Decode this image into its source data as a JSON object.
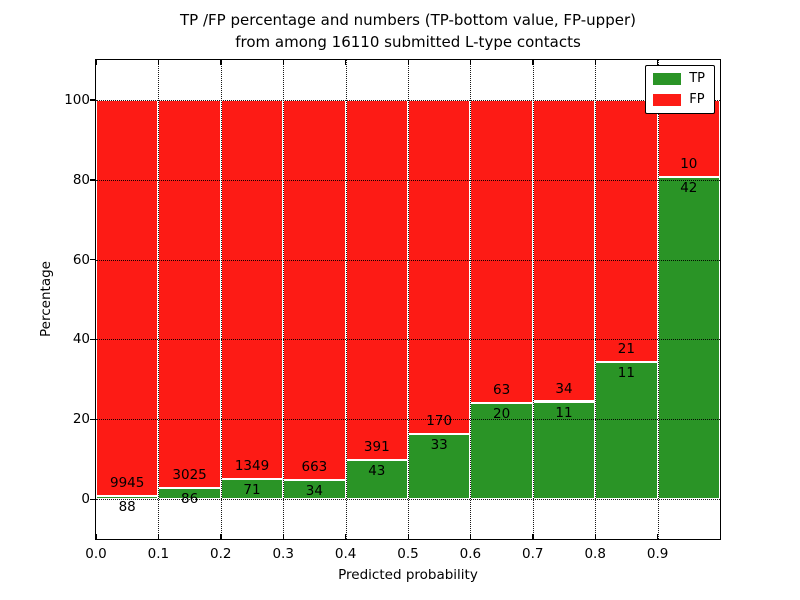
{
  "figure": {
    "title_line1": "TP /FP percentage and numbers (TP-bottom value, FP-upper)",
    "title_line2": "from among 16110 submitted L-type contacts"
  },
  "chart_data": {
    "type": "bar",
    "subtype": "stacked-100-percent-histogram",
    "title": "TP /FP percentage and numbers (TP-bottom value, FP-upper) from among 16110 submitted L-type contacts",
    "xlabel": "Predicted probability",
    "ylabel": "Percentage",
    "total_submitted": 16110,
    "bin_starts": [
      0.0,
      0.1,
      0.2,
      0.3,
      0.4,
      0.5,
      0.6,
      0.7,
      0.8,
      0.9
    ],
    "bin_width": 0.1,
    "xtick_labels": [
      "0.0",
      "0.1",
      "0.2",
      "0.3",
      "0.4",
      "0.5",
      "0.6",
      "0.7",
      "0.8",
      "0.9"
    ],
    "yticks": [
      0,
      20,
      40,
      60,
      80,
      100
    ],
    "ytick_labels": [
      "0",
      "20",
      "40",
      "60",
      "80",
      "100"
    ],
    "xlim": [
      0.0,
      1.0
    ],
    "ylim": [
      -10,
      110
    ],
    "grid": true,
    "grid_style": "dotted-black-above-bars",
    "bar_edge_color": "#ffffff",
    "series": [
      {
        "name": "TP",
        "color": "#2a9426",
        "counts": [
          88,
          86,
          71,
          34,
          43,
          33,
          20,
          11,
          11,
          42
        ]
      },
      {
        "name": "FP",
        "color": "#fd1b15",
        "counts": [
          9945,
          3025,
          1349,
          663,
          391,
          170,
          63,
          34,
          21,
          10
        ]
      }
    ],
    "tp_percent_of_bin": [
      0.9,
      2.8,
      5.0,
      4.9,
      9.9,
      16.3,
      24.1,
      24.4,
      34.4,
      80.8
    ],
    "legend": {
      "position": "upper right",
      "entries": [
        "TP",
        "FP"
      ]
    }
  }
}
